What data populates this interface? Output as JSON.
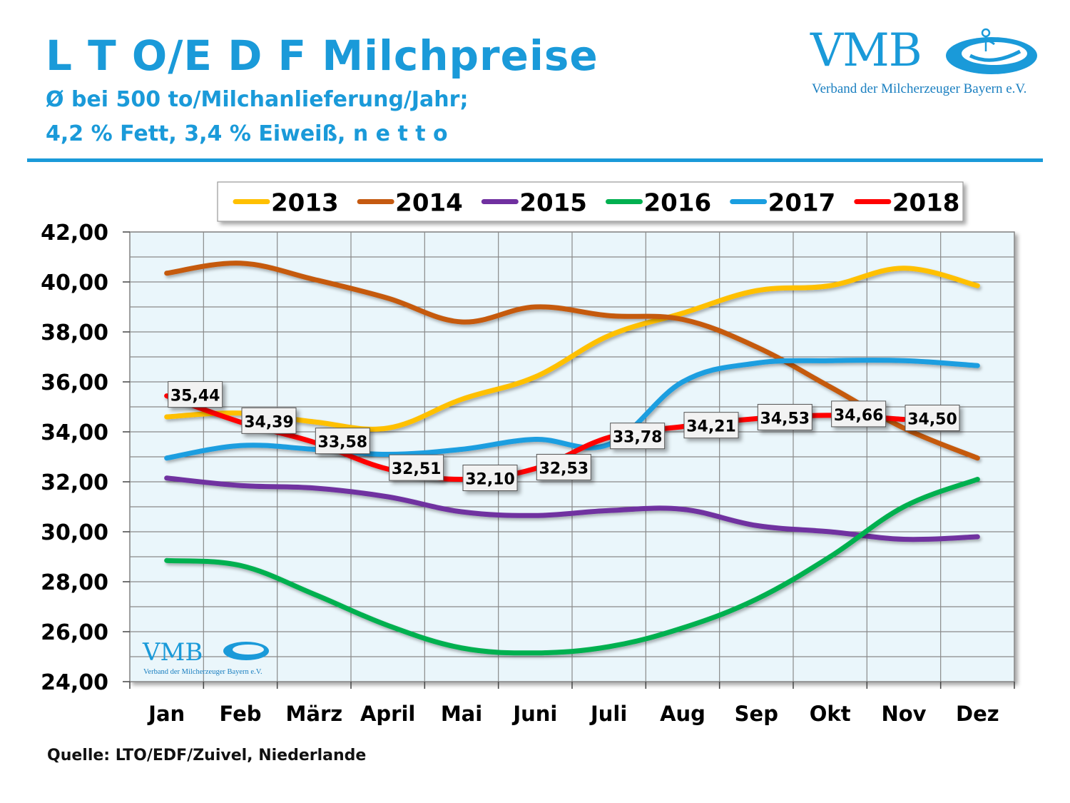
{
  "header": {
    "title": "L T O/E D F Milchpreise",
    "subtitle_line1": "Ø bei 500 to/Milchanlieferung/Jahr;",
    "subtitle_line2": "4,2 % Fett, 3,4 % Eiweiß, n e t t o"
  },
  "logo": {
    "text": "VMB",
    "subtext": "Verband der Milcherzeuger Bayern e.V."
  },
  "source": "Quelle: LTO/EDF/Zuivel, Niederlande",
  "chart_data": {
    "type": "line",
    "categories": [
      "Jan",
      "Feb",
      "März",
      "April",
      "Mai",
      "Juni",
      "Juli",
      "Aug",
      "Sep",
      "Okt",
      "Nov",
      "Dez"
    ],
    "ylim": [
      24,
      42
    ],
    "yticks": [
      "24,00",
      "26,00",
      "28,00",
      "30,00",
      "32,00",
      "34,00",
      "36,00",
      "38,00",
      "40,00",
      "42,00"
    ],
    "grid": true,
    "legend_position": "top",
    "watermark": "VMB Verband der Milcherzeuger Bayern e.V.",
    "series": [
      {
        "name": "2013",
        "color": "#ffc000",
        "values": [
          34.6,
          34.75,
          34.4,
          34.15,
          35.3,
          36.2,
          37.85,
          38.75,
          39.65,
          39.85,
          40.55,
          39.85
        ]
      },
      {
        "name": "2014",
        "color": "#c55a11",
        "values": [
          40.35,
          40.75,
          40.1,
          39.35,
          38.4,
          39.0,
          38.65,
          38.5,
          37.4,
          35.8,
          34.15,
          32.95
        ]
      },
      {
        "name": "2015",
        "color": "#7030a0",
        "values": [
          32.15,
          31.85,
          31.75,
          31.4,
          30.8,
          30.65,
          30.85,
          30.9,
          30.25,
          30.0,
          29.7,
          29.8
        ]
      },
      {
        "name": "2016",
        "color": "#00b050",
        "values": [
          28.85,
          28.65,
          27.5,
          26.25,
          25.35,
          25.15,
          25.4,
          26.15,
          27.3,
          29.0,
          31.0,
          32.1
        ]
      },
      {
        "name": "2017",
        "color": "#1a9ee0",
        "values": [
          32.95,
          33.45,
          33.3,
          33.1,
          33.3,
          33.7,
          33.5,
          36.0,
          36.75,
          36.85,
          36.85,
          36.65
        ]
      },
      {
        "name": "2018",
        "color": "#ff0000",
        "values": [
          35.44,
          34.39,
          33.58,
          32.51,
          32.1,
          32.53,
          33.78,
          34.21,
          34.53,
          34.66,
          34.5,
          null
        ],
        "labels": [
          "35,44",
          "34,39",
          "33,58",
          "32,51",
          "32,10",
          "32,53",
          "33,78",
          "34,21",
          "34,53",
          "34,66",
          "34,50",
          null
        ]
      }
    ]
  }
}
